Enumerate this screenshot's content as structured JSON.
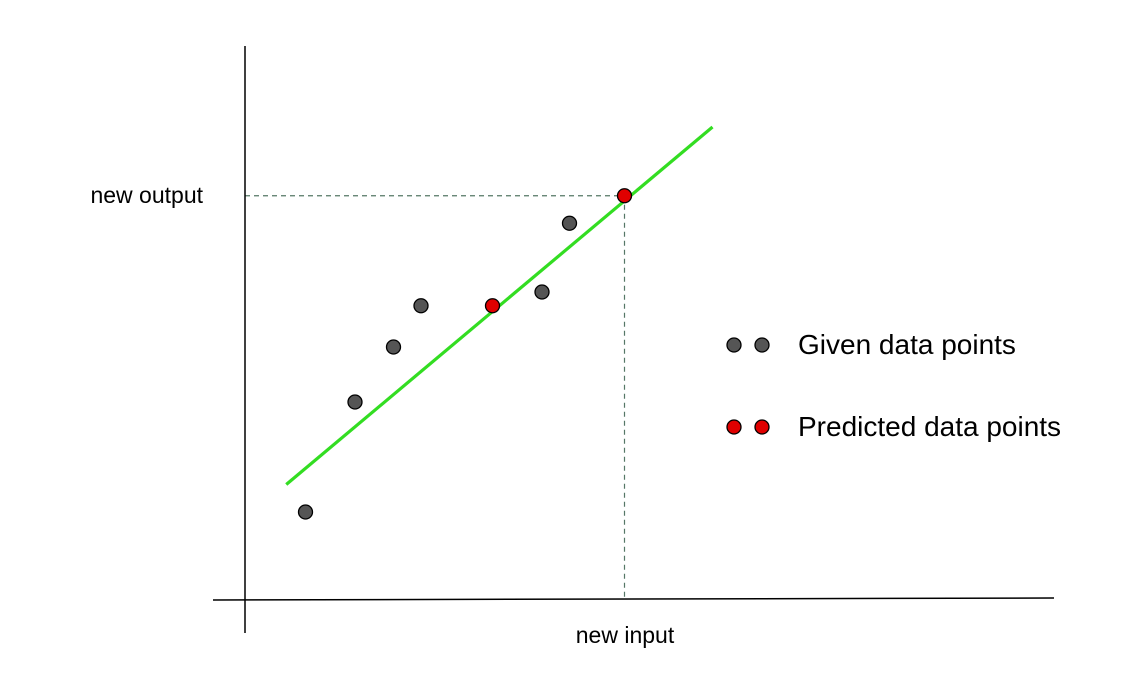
{
  "chart_data": {
    "type": "scatter",
    "x_label": "new input",
    "y_label": "new output",
    "grid": false,
    "colors": {
      "given_point": "#555555",
      "predicted_point": "#e00000",
      "fit_line": "#33dd22",
      "guide_line": "#557766",
      "axis": "#000000"
    },
    "series": [
      {
        "name": "Given data points",
        "kind": "given",
        "points": [
          {
            "x": 1.1,
            "y": 1.6
          },
          {
            "x": 2.0,
            "y": 3.6
          },
          {
            "x": 2.7,
            "y": 4.6
          },
          {
            "x": 3.2,
            "y": 5.35
          },
          {
            "x": 5.4,
            "y": 5.6
          },
          {
            "x": 5.9,
            "y": 6.85
          }
        ]
      },
      {
        "name": "Predicted data points",
        "kind": "predicted",
        "points": [
          {
            "x": 4.5,
            "y": 5.35
          },
          {
            "x": 6.9,
            "y": 7.35
          }
        ]
      }
    ],
    "fit_line": {
      "from": {
        "x": 0.75,
        "y": 2.1
      },
      "to": {
        "x": 8.5,
        "y": 8.6
      }
    },
    "guide": {
      "x": 6.9,
      "y": 7.35
    },
    "legend": [
      {
        "label": "Given data points",
        "kind": "given"
      },
      {
        "label": "Predicted data points",
        "kind": "predicted"
      }
    ],
    "legend_position": "right"
  }
}
